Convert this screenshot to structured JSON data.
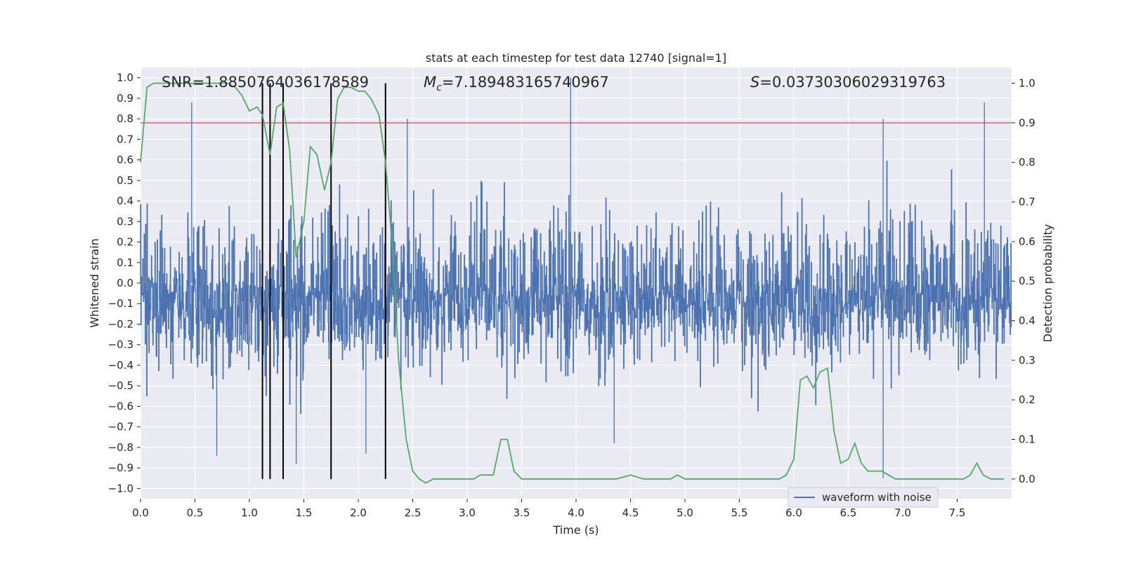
{
  "chart_data": {
    "type": "line",
    "title": "stats at each timestep for test data 12740 [signal=1]",
    "xlabel": "Time (s)",
    "ylabel": "Whitened strain",
    "y2label": "Detection probability",
    "xlim": [
      0,
      8
    ],
    "ylim": [
      -1.05,
      1.05
    ],
    "y2lim": [
      -0.05,
      1.04
    ],
    "x_ticks": [
      0.0,
      0.5,
      1.0,
      1.5,
      2.0,
      2.5,
      3.0,
      3.5,
      4.0,
      4.5,
      5.0,
      5.5,
      6.0,
      6.5,
      7.0,
      7.5
    ],
    "x_tick_labels": [
      "0.0",
      "0.5",
      "1.0",
      "1.5",
      "2.0",
      "2.5",
      "3.0",
      "3.5",
      "4.0",
      "4.5",
      "5.0",
      "5.5",
      "6.0",
      "6.5",
      "7.0",
      "7.5"
    ],
    "y_ticks": [
      1.0,
      0.9,
      0.8,
      0.7,
      0.6,
      0.5,
      0.4,
      0.3,
      0.2,
      0.1,
      0.0,
      -0.1,
      -0.2,
      -0.3,
      -0.4,
      -0.5,
      -0.6,
      -0.7,
      -0.8,
      -0.9,
      -1.0
    ],
    "y_tick_labels": [
      "1.0",
      "0.9",
      "0.8",
      "0.7",
      "0.6",
      "0.5",
      "0.4",
      "0.3",
      "0.2",
      "0.1",
      "0.0",
      "−0.1",
      "−0.2",
      "−0.3",
      "−0.4",
      "−0.5",
      "−0.6",
      "−0.7",
      "−0.8",
      "−0.9",
      "−1.0"
    ],
    "y2_ticks": [
      1.0,
      0.9,
      0.8,
      0.7,
      0.6,
      0.5,
      0.4,
      0.3,
      0.2,
      0.1,
      0.0
    ],
    "y2_tick_labels": [
      "1.0",
      "0.9",
      "0.8",
      "0.7",
      "0.6",
      "0.5",
      "0.4",
      "0.3",
      "0.2",
      "0.1",
      "0.0"
    ],
    "grid": true,
    "legend": {
      "position": "bottom-right",
      "entries": [
        "waveform with noise"
      ]
    },
    "annotations": {
      "snr": "SNR=1.8850764036178589",
      "mc_symbol": "M",
      "mc_subscript": "c",
      "mc_value": "=7.189483165740967",
      "s_symbol": "S",
      "s_value": "=0.03730306029319763"
    },
    "threshold": {
      "y2": 0.9,
      "color": "#c44e52"
    },
    "vertical_markers": [
      1.12,
      1.19,
      1.31,
      1.75,
      2.25
    ],
    "series": [
      {
        "name": "waveform with noise",
        "axis": "left",
        "color": "#4c72b0",
        "style": "noise",
        "amplitude_range": [
          -0.99,
          1.0
        ],
        "peaks": [
          {
            "x": 0.47,
            "y": 0.88
          },
          {
            "x": 3.95,
            "y": 1.0
          },
          {
            "x": 7.75,
            "y": 0.88
          },
          {
            "x": 2.45,
            "y": 0.8
          },
          {
            "x": 6.82,
            "y": 0.8
          },
          {
            "x": 0.7,
            "y": -0.84
          },
          {
            "x": 1.43,
            "y": -0.88
          },
          {
            "x": 6.82,
            "y": -0.95
          },
          {
            "x": 4.35,
            "y": -0.78
          },
          {
            "x": 2.07,
            "y": -0.83
          }
        ]
      },
      {
        "name": "",
        "axis": "right",
        "color": "#55a868",
        "x": [
          0.0,
          0.06,
          0.12,
          0.2,
          0.3,
          0.4,
          0.5,
          0.6,
          0.7,
          0.8,
          0.87,
          0.93,
          1.0,
          1.07,
          1.12,
          1.19,
          1.25,
          1.31,
          1.37,
          1.43,
          1.5,
          1.56,
          1.62,
          1.69,
          1.75,
          1.81,
          1.87,
          1.93,
          2.0,
          2.06,
          2.12,
          2.19,
          2.25,
          2.31,
          2.37,
          2.44,
          2.5,
          2.56,
          2.62,
          2.69,
          2.75,
          2.81,
          2.87,
          2.93,
          3.0,
          3.06,
          3.12,
          3.18,
          3.24,
          3.31,
          3.37,
          3.43,
          3.5,
          3.56,
          3.62,
          3.68,
          3.74,
          3.81,
          3.87,
          3.93,
          4.0,
          4.12,
          4.25,
          4.37,
          4.5,
          4.62,
          4.75,
          4.87,
          4.93,
          5.0,
          5.12,
          5.2,
          5.37,
          5.5,
          5.62,
          5.75,
          5.87,
          5.93,
          6.0,
          6.06,
          6.12,
          6.18,
          6.24,
          6.31,
          6.37,
          6.43,
          6.5,
          6.56,
          6.62,
          6.68,
          6.74,
          6.81,
          6.87,
          6.93,
          7.0,
          7.12,
          7.25,
          7.37,
          7.5,
          7.56,
          7.62,
          7.68,
          7.74,
          7.81,
          7.87,
          7.93
        ],
        "values": [
          0.8,
          0.99,
          1.0,
          1.0,
          1.0,
          1.0,
          1.0,
          1.0,
          1.0,
          1.0,
          0.99,
          0.97,
          0.93,
          0.94,
          0.92,
          0.82,
          0.94,
          0.95,
          0.83,
          0.56,
          0.65,
          0.84,
          0.82,
          0.73,
          0.8,
          0.96,
          0.99,
          0.99,
          0.98,
          0.98,
          0.96,
          0.92,
          0.8,
          0.6,
          0.3,
          0.1,
          0.02,
          0.0,
          -0.01,
          0.0,
          0.0,
          0.0,
          0.0,
          0.0,
          0.0,
          0.0,
          0.01,
          0.01,
          0.01,
          0.1,
          0.1,
          0.02,
          0.0,
          0.0,
          0.0,
          0.0,
          0.0,
          0.0,
          0.0,
          0.0,
          0.0,
          0.0,
          0.0,
          0.0,
          0.01,
          0.0,
          0.0,
          0.0,
          0.01,
          0.0,
          0.0,
          0.0,
          0.0,
          0.0,
          0.0,
          0.0,
          0.0,
          0.01,
          0.05,
          0.25,
          0.26,
          0.23,
          0.27,
          0.28,
          0.12,
          0.04,
          0.05,
          0.09,
          0.04,
          0.02,
          0.02,
          0.02,
          0.01,
          0.0,
          0.0,
          0.0,
          0.0,
          0.0,
          0.0,
          0.0,
          0.01,
          0.04,
          0.01,
          0.0,
          0.0,
          0.0
        ]
      }
    ]
  }
}
